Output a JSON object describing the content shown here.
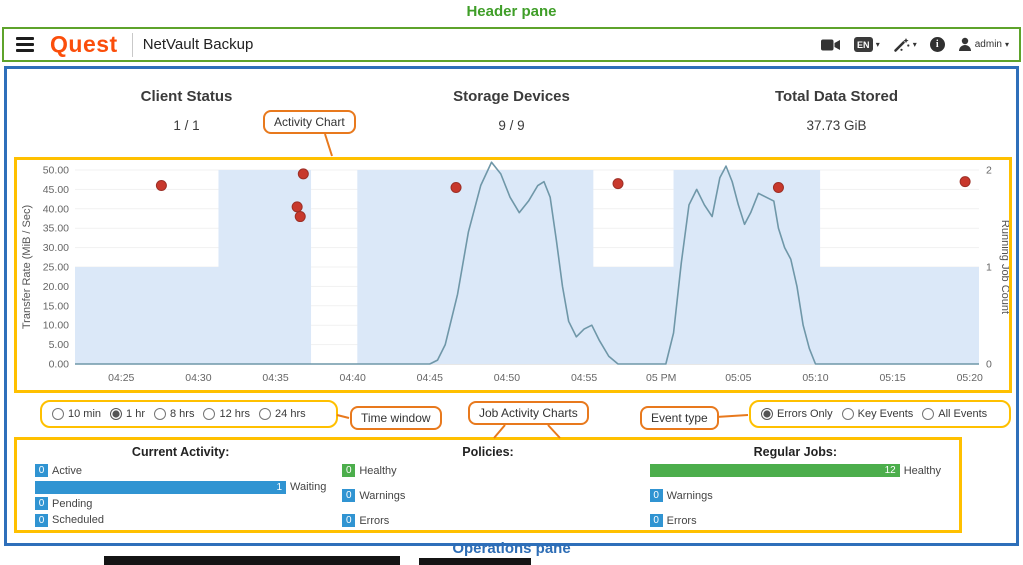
{
  "annotations": {
    "header_pane": "Header pane",
    "operations_pane": "Operations pane",
    "activity_chart": "Activity Chart",
    "time_window": "Time window",
    "job_activity_charts": "Job Activity Charts",
    "event_type": "Event type"
  },
  "header": {
    "logo_text": "Quest",
    "app_title": "NetVault Backup",
    "language_label": "EN",
    "user_label": "admin"
  },
  "summary": {
    "tiles": [
      {
        "label": "Client Status",
        "value": "1 / 1"
      },
      {
        "label": "Storage Devices",
        "value": "9 / 9"
      },
      {
        "label": "Total Data Stored",
        "value": "37.73 GiB"
      }
    ]
  },
  "controls": {
    "time_window": {
      "options": [
        {
          "label": "10 min",
          "selected": false
        },
        {
          "label": "1 hr",
          "selected": true
        },
        {
          "label": "8 hrs",
          "selected": false
        },
        {
          "label": "12 hrs",
          "selected": false
        },
        {
          "label": "24 hrs",
          "selected": false
        }
      ]
    },
    "event_type": {
      "options": [
        {
          "label": "Errors Only",
          "selected": true
        },
        {
          "label": "Key Events",
          "selected": false
        },
        {
          "label": "All Events",
          "selected": false
        }
      ]
    }
  },
  "chart_data": {
    "type": "line",
    "title": "Activity Chart",
    "left_axis": {
      "label": "Transfer Rate (MiB / Sec)",
      "min": 0,
      "max": 50,
      "tick_values": [
        50,
        45,
        40,
        35,
        30,
        25,
        20,
        15,
        10,
        5,
        0
      ],
      "tick_labels": [
        "50.00",
        "45.00",
        "40.00",
        "35.00",
        "30.00",
        "25.00",
        "20.00",
        "15.00",
        "10.00",
        "5.00",
        "0.00"
      ]
    },
    "right_axis": {
      "label": "Running Job Count",
      "min": 0,
      "max": 2,
      "tick_values": [
        2,
        1,
        0
      ],
      "tick_labels": [
        "2",
        "1",
        "0"
      ]
    },
    "x_axis": {
      "unit": "minutes after 04:20",
      "min": 2,
      "max": 60.6,
      "tick_values": [
        5,
        10,
        15,
        20,
        25,
        30,
        35,
        40,
        45,
        50,
        55,
        60
      ],
      "tick_labels": [
        "04:25",
        "04:30",
        "04:35",
        "04:40",
        "04:45",
        "04:50",
        "04:55",
        "05 PM",
        "05:05",
        "05:10",
        "05:15",
        "05:20"
      ]
    },
    "series": [
      {
        "name": "Running Job Count",
        "type": "step_area",
        "axis": "right",
        "color": "#dbe8f8",
        "points": [
          [
            2,
            1
          ],
          [
            11.3,
            1
          ],
          [
            11.3,
            2
          ],
          [
            17.3,
            2
          ],
          [
            17.3,
            0
          ],
          [
            20.3,
            0
          ],
          [
            20.3,
            2
          ],
          [
            35.6,
            2
          ],
          [
            35.6,
            1
          ],
          [
            40.8,
            1
          ],
          [
            40.8,
            2
          ],
          [
            50.3,
            2
          ],
          [
            50.3,
            1
          ],
          [
            60.6,
            1
          ]
        ]
      },
      {
        "name": "Transfer Rate",
        "type": "line",
        "axis": "left",
        "color": "#6f97a8",
        "points": [
          [
            2,
            0
          ],
          [
            25,
            0
          ],
          [
            25.5,
            1
          ],
          [
            26,
            5
          ],
          [
            26.8,
            18
          ],
          [
            27.5,
            34
          ],
          [
            28.3,
            46
          ],
          [
            29,
            52
          ],
          [
            29.6,
            49
          ],
          [
            30.2,
            43
          ],
          [
            30.8,
            39
          ],
          [
            31.4,
            42
          ],
          [
            32,
            46
          ],
          [
            32.4,
            47
          ],
          [
            32.8,
            43
          ],
          [
            33.2,
            32
          ],
          [
            33.6,
            20
          ],
          [
            34,
            11
          ],
          [
            34.5,
            7
          ],
          [
            35,
            9
          ],
          [
            35.5,
            10
          ],
          [
            36,
            6
          ],
          [
            36.6,
            2
          ],
          [
            37.2,
            0
          ],
          [
            40.3,
            0
          ],
          [
            40.8,
            8
          ],
          [
            41.3,
            26
          ],
          [
            41.8,
            41
          ],
          [
            42.3,
            45
          ],
          [
            42.8,
            41
          ],
          [
            43.3,
            38
          ],
          [
            43.8,
            48
          ],
          [
            44.2,
            51
          ],
          [
            44.6,
            47
          ],
          [
            45,
            41
          ],
          [
            45.4,
            36
          ],
          [
            45.8,
            39
          ],
          [
            46.3,
            44
          ],
          [
            46.8,
            43
          ],
          [
            47.3,
            42
          ],
          [
            47.6,
            35
          ],
          [
            48,
            30
          ],
          [
            48.4,
            27
          ],
          [
            48.8,
            20
          ],
          [
            49.2,
            10
          ],
          [
            49.6,
            4
          ],
          [
            50,
            0
          ],
          [
            60.6,
            0
          ]
        ]
      },
      {
        "name": "Error Events",
        "type": "scatter",
        "axis": "left",
        "color": "#c8382c",
        "points": [
          [
            7.6,
            46
          ],
          [
            16.8,
            49
          ],
          [
            16.4,
            40.5
          ],
          [
            16.6,
            38
          ],
          [
            26.7,
            45.5
          ],
          [
            37.2,
            46.5
          ],
          [
            47.6,
            45.5
          ],
          [
            59.7,
            47
          ]
        ]
      }
    ]
  },
  "operations": {
    "columns": [
      {
        "title": "Current Activity:",
        "rows": [
          {
            "value": "0",
            "label": "Active",
            "color": "#3094d2"
          },
          {
            "value": "1",
            "label": "Waiting",
            "color": "#3094d2"
          },
          {
            "value": "0",
            "label": "Pending",
            "color": "#3094d2"
          },
          {
            "value": "0",
            "label": "Scheduled",
            "color": "#3094d2"
          }
        ]
      },
      {
        "title": "Policies:",
        "rows": [
          {
            "value": "0",
            "label": "Healthy",
            "color": "#4cae4c"
          },
          {
            "value": "0",
            "label": "Warnings",
            "color": "#3094d2"
          },
          {
            "value": "0",
            "label": "Errors",
            "color": "#3094d2"
          }
        ]
      },
      {
        "title": "Regular Jobs:",
        "rows": [
          {
            "value": "12",
            "label": "Healthy",
            "color": "#4cae4c"
          },
          {
            "value": "0",
            "label": "Warnings",
            "color": "#3094d2"
          },
          {
            "value": "0",
            "label": "Errors",
            "color": "#3094d2"
          }
        ]
      }
    ]
  },
  "colors": {
    "header_border": "#5ea32b",
    "main_border": "#2e6fba",
    "highlight_border": "#ffc000",
    "callout_border": "#e8791d",
    "annotation_green": "#3f9e28",
    "annotation_blue": "#2d6db5",
    "logo_orange": "#fb4e0b",
    "error_dot": "#c8382c",
    "bar_blue": "#3094d2",
    "bar_green": "#4cae4c",
    "job_area_fill": "#dbe8f8",
    "transfer_line": "#6f97a8"
  }
}
